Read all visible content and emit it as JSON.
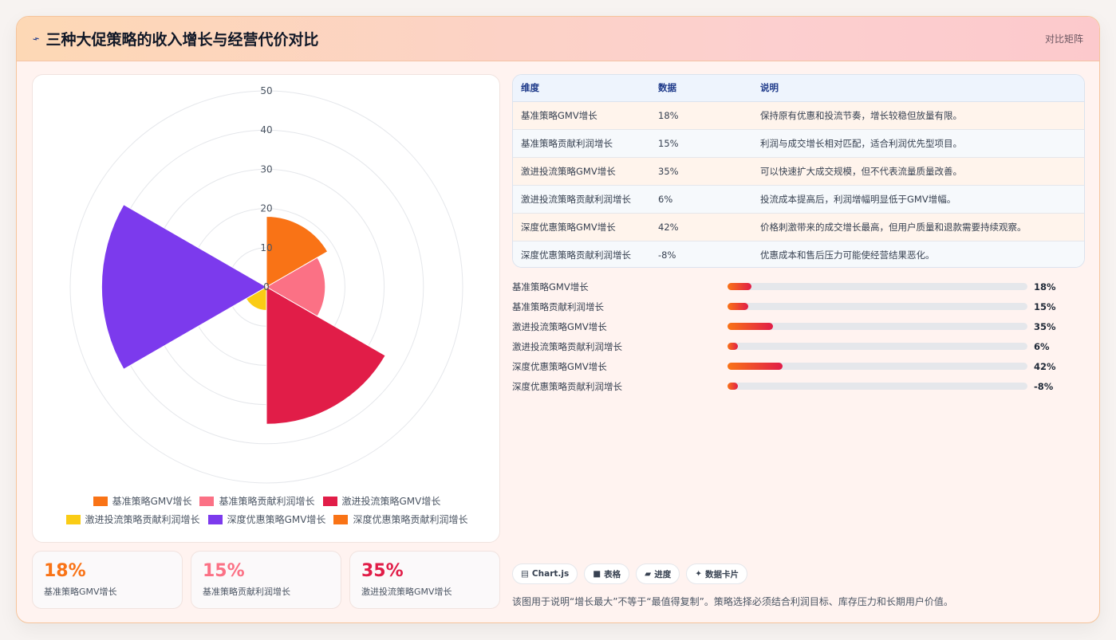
{
  "header": {
    "icon": "lightning-icon",
    "title": "三种大促策略的收入增长与经营代价对比",
    "tag": "对比矩阵"
  },
  "chart_data": {
    "type": "polarArea",
    "r_ticks": [
      "0",
      "10",
      "20",
      "30",
      "40",
      "50"
    ],
    "r_max": 50,
    "categories": [
      "基准策略GMV增长",
      "基准策略贡献利润增长",
      "激进投流策略GMV增长",
      "激进投流策略贡献利润增长",
      "深度优惠策略GMV增长",
      "深度优惠策略贡献利润增长"
    ],
    "values": [
      18,
      15,
      35,
      6,
      42,
      -8
    ],
    "colors": [
      "#f97316",
      "#fb7185",
      "#e11d48",
      "#facc15",
      "#7c3aed",
      "#f97316"
    ]
  },
  "legend": [
    {
      "label": "基准策略GMV增长",
      "color": "#f97316"
    },
    {
      "label": "基准策略贡献利润增长",
      "color": "#fb7185"
    },
    {
      "label": "激进投流策略GMV增长",
      "color": "#e11d48"
    },
    {
      "label": "激进投流策略贡献利润增长",
      "color": "#facc15"
    },
    {
      "label": "深度优惠策略GMV增长",
      "color": "#7c3aed"
    },
    {
      "label": "深度优惠策略贡献利润增长",
      "color": "#f97316"
    }
  ],
  "kpis": [
    {
      "value": "18%",
      "label": "基准策略GMV增长",
      "color": "#f97316"
    },
    {
      "value": "15%",
      "label": "基准策略贡献利润增长",
      "color": "#fb7185"
    },
    {
      "value": "35%",
      "label": "激进投流策略GMV增长",
      "color": "#e11d48"
    }
  ],
  "table": {
    "headers": [
      "维度",
      "数据",
      "说明"
    ],
    "rows": [
      [
        "基准策略GMV增长",
        "18%",
        "保持原有优惠和投流节奏，增长较稳但放量有限。"
      ],
      [
        "基准策略贡献利润增长",
        "15%",
        "利润与成交增长相对匹配，适合利润优先型项目。"
      ],
      [
        "激进投流策略GMV增长",
        "35%",
        "可以快速扩大成交规模，但不代表流量质量改善。"
      ],
      [
        "激进投流策略贡献利润增长",
        "6%",
        "投流成本提高后，利润增幅明显低于GMV增幅。"
      ],
      [
        "深度优惠策略GMV增长",
        "42%",
        "价格刺激带来的成交增长最高，但用户质量和退款需要持续观察。"
      ],
      [
        "深度优惠策略贡献利润增长",
        "-8%",
        "优惠成本和售后压力可能使经营结果恶化。"
      ]
    ]
  },
  "bars": [
    {
      "label": "基准策略GMV增长",
      "value": "18%",
      "fill": 0.08
    },
    {
      "label": "基准策略贡献利润增长",
      "value": "15%",
      "fill": 0.068
    },
    {
      "label": "激进投流策略GMV增长",
      "value": "35%",
      "fill": 0.152
    },
    {
      "label": "激进投流策略贡献利润增长",
      "value": "6%",
      "fill": 0.035
    },
    {
      "label": "深度优惠策略GMV增长",
      "value": "42%",
      "fill": 0.184
    },
    {
      "label": "深度优惠策略贡献利润增长",
      "value": "-8%",
      "fill": 0.035
    }
  ],
  "chips": [
    {
      "icon": "▤",
      "label": "Chart.js"
    },
    {
      "icon": "■",
      "label": "表格"
    },
    {
      "icon": "▰",
      "label": "进度"
    },
    {
      "icon": "✦",
      "label": "数据卡片"
    }
  ],
  "note": "该图用于说明“增长最大”不等于“最值得复制”。策略选择必须结合利润目标、库存压力和长期用户价值。"
}
